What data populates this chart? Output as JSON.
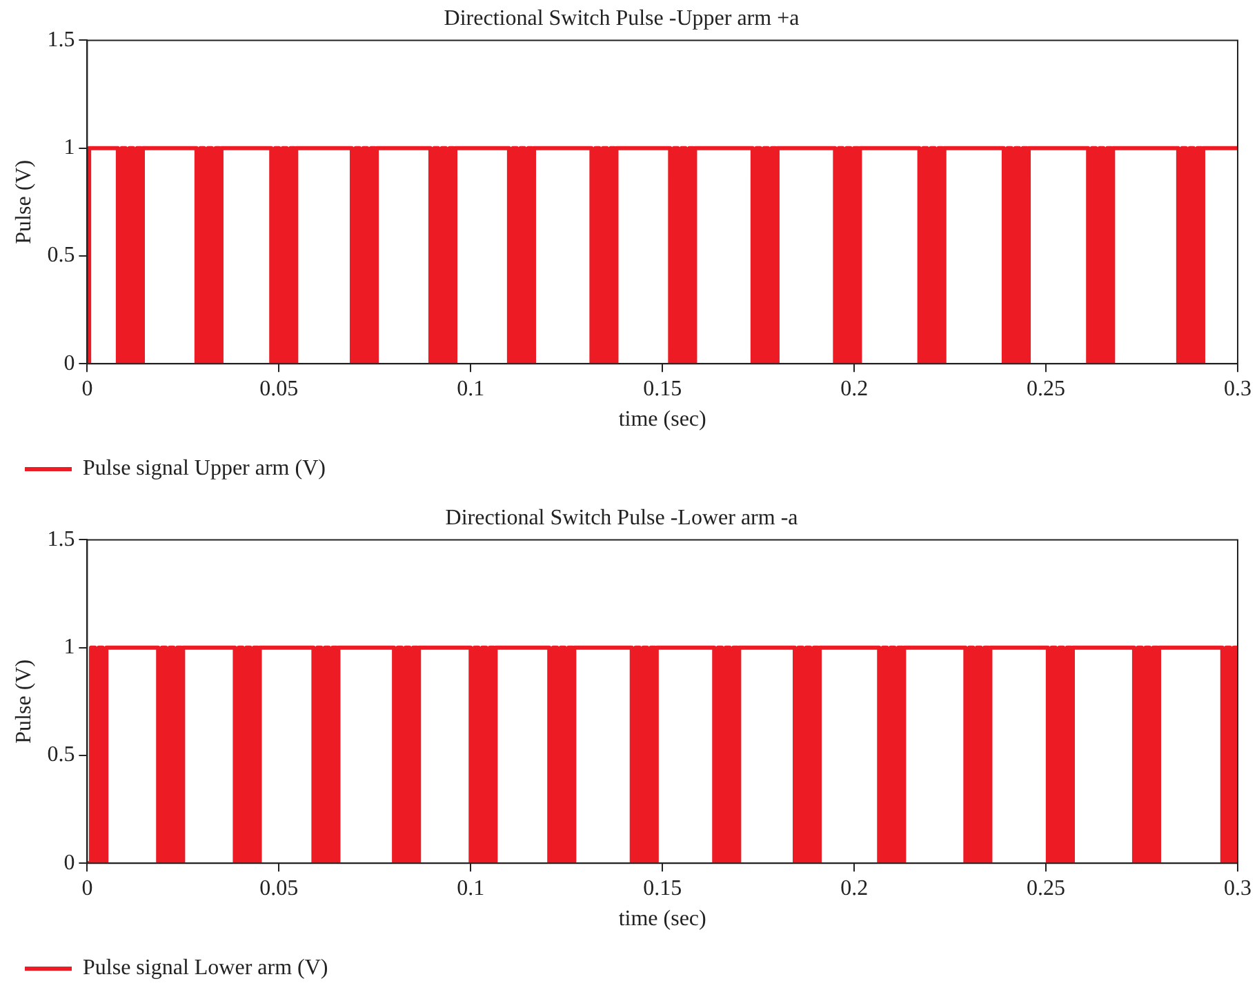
{
  "chart_data": [
    {
      "type": "step",
      "title": "Directional Switch Pulse -Upper arm +a",
      "xlabel": "time (sec)",
      "ylabel": "Pulse (V)",
      "xlim": [
        0,
        0.3
      ],
      "xticks": [
        0,
        0.05,
        0.1,
        0.15,
        0.2,
        0.25,
        0.3
      ],
      "ylim": [
        0,
        1.5
      ],
      "yticks": [
        0,
        0.5,
        1,
        1.5
      ],
      "grid": false,
      "legend": "bottom",
      "series": [
        {
          "name": "Pulse signal Upper arm (V)",
          "color": "#ed1c24",
          "x": [
            0,
            0.0005,
            0.008,
            0.009,
            0.01,
            0.011,
            0.012,
            0.013,
            0.014,
            0.0145,
            0.0285,
            0.0295,
            0.0305,
            0.0315,
            0.0325,
            0.0335,
            0.0345,
            0.035,
            0.048,
            0.049,
            0.05,
            0.051,
            0.052,
            0.053,
            0.054,
            0.0545,
            0.069,
            0.07,
            0.071,
            0.072,
            0.073,
            0.074,
            0.075,
            0.0755,
            0.0895,
            0.0905,
            0.0915,
            0.0925,
            0.0935,
            0.0945,
            0.0955,
            0.096,
            0.11,
            0.111,
            0.112,
            0.113,
            0.114,
            0.115,
            0.116,
            0.1165,
            0.1315,
            0.1325,
            0.1335,
            0.1345,
            0.1355,
            0.1365,
            0.1375,
            0.138,
            0.152,
            0.153,
            0.154,
            0.155,
            0.156,
            0.157,
            0.158,
            0.1585,
            0.1735,
            0.1745,
            0.1755,
            0.1765,
            0.1775,
            0.1785,
            0.1795,
            0.18,
            0.195,
            0.196,
            0.197,
            0.198,
            0.199,
            0.2,
            0.201,
            0.2015,
            0.217,
            0.218,
            0.219,
            0.22,
            0.221,
            0.222,
            0.223,
            0.2235,
            0.239,
            0.24,
            0.241,
            0.242,
            0.243,
            0.244,
            0.245,
            0.2455,
            0.261,
            0.262,
            0.263,
            0.264,
            0.265,
            0.266,
            0.267,
            0.2675,
            0.2845,
            0.2855,
            0.2865,
            0.2875,
            0.2885,
            0.2895,
            0.2905,
            0.291,
            0.3
          ],
          "values": [
            0,
            1,
            0,
            1,
            0,
            1,
            0,
            1,
            0,
            1,
            0,
            1,
            0,
            1,
            0,
            1,
            0,
            1,
            0,
            1,
            0,
            1,
            0,
            1,
            0,
            1,
            0,
            1,
            0,
            1,
            0,
            1,
            0,
            1,
            0,
            1,
            0,
            1,
            0,
            1,
            0,
            1,
            0,
            1,
            0,
            1,
            0,
            1,
            0,
            1,
            0,
            1,
            0,
            1,
            0,
            1,
            0,
            1,
            0,
            1,
            0,
            1,
            0,
            1,
            0,
            1,
            0,
            1,
            0,
            1,
            0,
            1,
            0,
            1,
            0,
            1,
            0,
            1,
            0,
            1,
            0,
            1,
            0,
            1,
            0,
            1,
            0,
            1,
            0,
            1,
            0,
            1,
            0,
            1,
            0,
            1,
            0,
            1,
            0,
            1,
            0,
            1,
            0,
            1,
            0,
            1,
            0,
            1,
            0,
            1,
            0,
            1,
            0,
            1,
            1
          ]
        }
      ]
    },
    {
      "type": "step",
      "title": "Directional Switch Pulse -Lower arm -a",
      "xlabel": "time (sec)",
      "ylabel": "Pulse (V)",
      "xlim": [
        0,
        0.3
      ],
      "xticks": [
        0,
        0.05,
        0.1,
        0.15,
        0.2,
        0.25,
        0.3
      ],
      "ylim": [
        0,
        1.5
      ],
      "yticks": [
        0,
        0.5,
        1,
        1.5
      ],
      "grid": false,
      "legend": "bottom",
      "series": [
        {
          "name": "Pulse signal Lower arm (V)",
          "color": "#ed1c24",
          "x": [
            0,
            0.001,
            0.002,
            0.003,
            0.004,
            0.005,
            0.0185,
            0.0195,
            0.0205,
            0.0215,
            0.0225,
            0.0235,
            0.0245,
            0.025,
            0.0385,
            0.0395,
            0.0405,
            0.0415,
            0.0425,
            0.0435,
            0.0445,
            0.045,
            0.059,
            0.06,
            0.061,
            0.062,
            0.063,
            0.064,
            0.065,
            0.0655,
            0.08,
            0.081,
            0.082,
            0.083,
            0.084,
            0.085,
            0.086,
            0.0865,
            0.1,
            0.101,
            0.102,
            0.103,
            0.104,
            0.105,
            0.106,
            0.1065,
            0.1205,
            0.1215,
            0.1225,
            0.1235,
            0.1245,
            0.1255,
            0.1265,
            0.127,
            0.142,
            0.143,
            0.144,
            0.145,
            0.146,
            0.147,
            0.148,
            0.1485,
            0.1635,
            0.1645,
            0.1655,
            0.1665,
            0.1675,
            0.1685,
            0.1695,
            0.17,
            0.1845,
            0.1855,
            0.1865,
            0.1875,
            0.1885,
            0.1895,
            0.1905,
            0.191,
            0.2065,
            0.2075,
            0.2085,
            0.2095,
            0.2105,
            0.2115,
            0.2125,
            0.213,
            0.229,
            0.23,
            0.231,
            0.232,
            0.233,
            0.234,
            0.235,
            0.2355,
            0.2505,
            0.2515,
            0.2525,
            0.2535,
            0.2545,
            0.2555,
            0.2565,
            0.257,
            0.273,
            0.274,
            0.275,
            0.276,
            0.277,
            0.278,
            0.279,
            0.2795,
            0.296,
            0.297,
            0.298,
            0.299,
            0.3
          ],
          "values": [
            0,
            1,
            0,
            1,
            0,
            1,
            0,
            1,
            0,
            1,
            0,
            1,
            0,
            1,
            0,
            1,
            0,
            1,
            0,
            1,
            0,
            1,
            0,
            1,
            0,
            1,
            0,
            1,
            0,
            1,
            0,
            1,
            0,
            1,
            0,
            1,
            0,
            1,
            0,
            1,
            0,
            1,
            0,
            1,
            0,
            1,
            0,
            1,
            0,
            1,
            0,
            1,
            0,
            1,
            0,
            1,
            0,
            1,
            0,
            1,
            0,
            1,
            0,
            1,
            0,
            1,
            0,
            1,
            0,
            1,
            0,
            1,
            0,
            1,
            0,
            1,
            0,
            1,
            0,
            1,
            0,
            1,
            0,
            1,
            0,
            1,
            0,
            1,
            0,
            1,
            0,
            1,
            0,
            1,
            0,
            1,
            0,
            1,
            0,
            1,
            0,
            1,
            0,
            1,
            0,
            1,
            0,
            1,
            0,
            1,
            0,
            1,
            0,
            1,
            0
          ]
        }
      ]
    }
  ]
}
